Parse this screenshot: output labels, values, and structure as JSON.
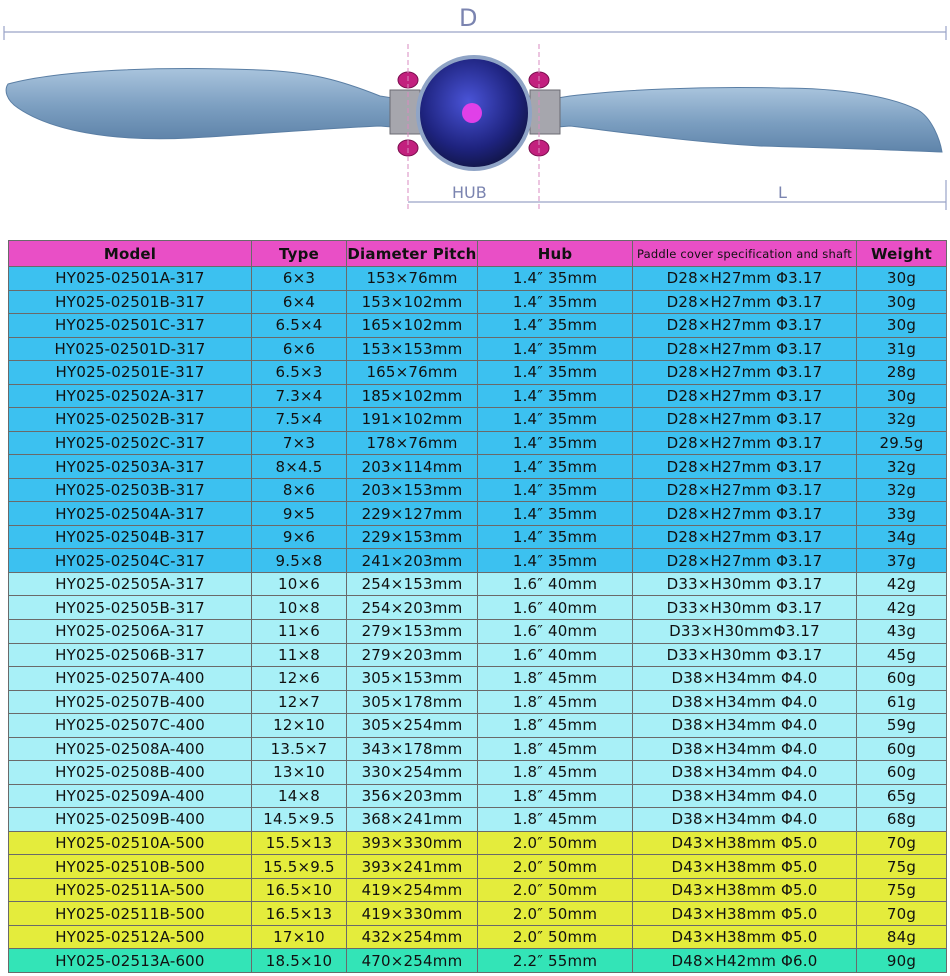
{
  "diagram": {
    "diameter_label": "D",
    "hub_label": "HUB",
    "length_label": "L"
  },
  "table": {
    "headers": [
      "Model",
      "Type",
      "Diameter  Pitch",
      "Hub",
      "Paddle cover specification and shaft",
      "Weight"
    ],
    "rows": [
      {
        "model": "HY025-02501A-317",
        "type": "6×3",
        "diameter_pitch": "153×76mm",
        "hub": "1.4″  35mm",
        "cover_shaft": "D28×H27mm Φ3.17",
        "weight": "30g",
        "group": "g317"
      },
      {
        "model": "HY025-02501B-317",
        "type": "6×4",
        "diameter_pitch": "153×102mm",
        "hub": "1.4″  35mm",
        "cover_shaft": "D28×H27mm Φ3.17",
        "weight": "30g",
        "group": "g317"
      },
      {
        "model": "HY025-02501C-317",
        "type": "6.5×4",
        "diameter_pitch": "165×102mm",
        "hub": "1.4″  35mm",
        "cover_shaft": "D28×H27mm Φ3.17",
        "weight": "30g",
        "group": "g317"
      },
      {
        "model": "HY025-02501D-317",
        "type": "6×6",
        "diameter_pitch": "153×153mm",
        "hub": "1.4″  35mm",
        "cover_shaft": "D28×H27mm Φ3.17",
        "weight": "31g",
        "group": "g317"
      },
      {
        "model": "HY025-02501E-317",
        "type": "6.5×3",
        "diameter_pitch": "165×76mm",
        "hub": "1.4″  35mm",
        "cover_shaft": "D28×H27mm Φ3.17",
        "weight": "28g",
        "group": "g317"
      },
      {
        "model": "HY025-02502A-317",
        "type": "7.3×4",
        "diameter_pitch": "185×102mm",
        "hub": "1.4″  35mm",
        "cover_shaft": "D28×H27mm Φ3.17",
        "weight": "30g",
        "group": "g317"
      },
      {
        "model": "HY025-02502B-317",
        "type": "7.5×4",
        "diameter_pitch": "191×102mm",
        "hub": "1.4″  35mm",
        "cover_shaft": "D28×H27mm Φ3.17",
        "weight": "32g",
        "group": "g317"
      },
      {
        "model": "HY025-02502C-317",
        "type": "7×3",
        "diameter_pitch": "178×76mm",
        "hub": "1.4″  35mm",
        "cover_shaft": "D28×H27mm Φ3.17",
        "weight": "29.5g",
        "group": "g317"
      },
      {
        "model": "HY025-02503A-317",
        "type": "8×4.5",
        "diameter_pitch": "203×114mm",
        "hub": "1.4″  35mm",
        "cover_shaft": "D28×H27mm Φ3.17",
        "weight": "32g",
        "group": "g317"
      },
      {
        "model": "HY025-02503B-317",
        "type": "8×6",
        "diameter_pitch": "203×153mm",
        "hub": "1.4″  35mm",
        "cover_shaft": "D28×H27mm Φ3.17",
        "weight": "32g",
        "group": "g317"
      },
      {
        "model": "HY025-02504A-317",
        "type": "9×5",
        "diameter_pitch": "229×127mm",
        "hub": "1.4″  35mm",
        "cover_shaft": "D28×H27mm Φ3.17",
        "weight": "33g",
        "group": "g317"
      },
      {
        "model": "HY025-02504B-317",
        "type": "9×6",
        "diameter_pitch": "229×153mm",
        "hub": "1.4″  35mm",
        "cover_shaft": "D28×H27mm Φ3.17",
        "weight": "34g",
        "group": "g317"
      },
      {
        "model": "HY025-02504C-317",
        "type": "9.5×8",
        "diameter_pitch": "241×203mm",
        "hub": "1.4″  35mm",
        "cover_shaft": "D28×H27mm Φ3.17",
        "weight": "37g",
        "group": "g317"
      },
      {
        "model": "HY025-02505A-317",
        "type": "10×6",
        "diameter_pitch": "254×153mm",
        "hub": "1.6″  40mm",
        "cover_shaft": "D33×H30mm Φ3.17",
        "weight": "42g",
        "group": "g317l"
      },
      {
        "model": "HY025-02505B-317",
        "type": "10×8",
        "diameter_pitch": "254×203mm",
        "hub": "1.6″  40mm",
        "cover_shaft": "D33×H30mm Φ3.17",
        "weight": "42g",
        "group": "g317l"
      },
      {
        "model": "HY025-02506A-317",
        "type": "11×6",
        "diameter_pitch": "279×153mm",
        "hub": "1.6″  40mm",
        "cover_shaft": "D33×H30mmΦ3.17",
        "weight": "43g",
        "group": "g317l"
      },
      {
        "model": "HY025-02506B-317",
        "type": "11×8",
        "diameter_pitch": "279×203mm",
        "hub": "1.6″  40mm",
        "cover_shaft": "D33×H30mm Φ3.17",
        "weight": "45g",
        "group": "g317l"
      },
      {
        "model": "HY025-02507A-400",
        "type": "12×6",
        "diameter_pitch": "305×153mm",
        "hub": "1.8″  45mm",
        "cover_shaft": "D38×H34mm Φ4.0",
        "weight": "60g",
        "group": "g400"
      },
      {
        "model": "HY025-02507B-400",
        "type": "12×7",
        "diameter_pitch": "305×178mm",
        "hub": "1.8″  45mm",
        "cover_shaft": "D38×H34mm Φ4.0",
        "weight": "61g",
        "group": "g400"
      },
      {
        "model": "HY025-02507C-400",
        "type": "12×10",
        "diameter_pitch": "305×254mm",
        "hub": "1.8″  45mm",
        "cover_shaft": "D38×H34mm Φ4.0",
        "weight": "59g",
        "group": "g400"
      },
      {
        "model": "HY025-02508A-400",
        "type": "13.5×7",
        "diameter_pitch": "343×178mm",
        "hub": "1.8″  45mm",
        "cover_shaft": "D38×H34mm Φ4.0",
        "weight": "60g",
        "group": "g400"
      },
      {
        "model": "HY025-02508B-400",
        "type": "13×10",
        "diameter_pitch": "330×254mm",
        "hub": "1.8″  45mm",
        "cover_shaft": "D38×H34mm Φ4.0",
        "weight": "60g",
        "group": "g400"
      },
      {
        "model": "HY025-02509A-400",
        "type": "14×8",
        "diameter_pitch": "356×203mm",
        "hub": "1.8″  45mm",
        "cover_shaft": "D38×H34mm Φ4.0",
        "weight": "65g",
        "group": "g400"
      },
      {
        "model": "HY025-02509B-400",
        "type": "14.5×9.5",
        "diameter_pitch": "368×241mm",
        "hub": "1.8″  45mm",
        "cover_shaft": "D38×H34mm Φ4.0",
        "weight": "68g",
        "group": "g400"
      },
      {
        "model": "HY025-02510A-500",
        "type": "15.5×13",
        "diameter_pitch": "393×330mm",
        "hub": "2.0″  50mm",
        "cover_shaft": "D43×H38mm Φ5.0",
        "weight": "70g",
        "group": "g500"
      },
      {
        "model": "HY025-02510B-500",
        "type": "15.5×9.5",
        "diameter_pitch": "393×241mm",
        "hub": "2.0″  50mm",
        "cover_shaft": "D43×H38mm Φ5.0",
        "weight": "75g",
        "group": "g500"
      },
      {
        "model": "HY025-02511A-500",
        "type": "16.5×10",
        "diameter_pitch": "419×254mm",
        "hub": "2.0″  50mm",
        "cover_shaft": "D43×H38mm Φ5.0",
        "weight": "75g",
        "group": "g500"
      },
      {
        "model": "HY025-02511B-500",
        "type": "16.5×13",
        "diameter_pitch": "419×330mm",
        "hub": "2.0″  50mm",
        "cover_shaft": "D43×H38mm Φ5.0",
        "weight": "70g",
        "group": "g500"
      },
      {
        "model": "HY025-02512A-500",
        "type": "17×10",
        "diameter_pitch": "432×254mm",
        "hub": "2.0″  50mm",
        "cover_shaft": "D43×H38mm Φ5.0",
        "weight": "84g",
        "group": "g500"
      },
      {
        "model": "HY025-02513A-600",
        "type": "18.5×10",
        "diameter_pitch": "470×254mm",
        "hub": "2.2″  55mm",
        "cover_shaft": "D48×H42mm Φ6.0",
        "weight": "90g",
        "group": "g600"
      }
    ]
  }
}
